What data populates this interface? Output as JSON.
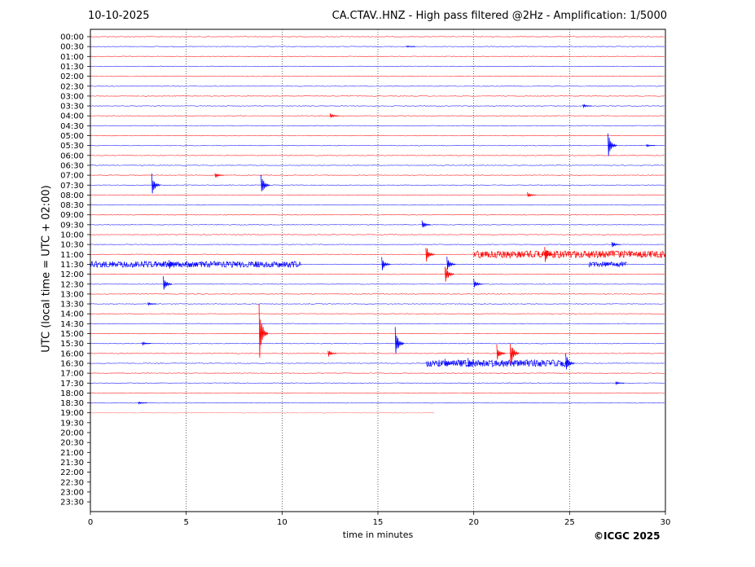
{
  "header": {
    "date": "10-10-2025",
    "station_title": "CA.CTAV..HNZ - High pass filtered @2Hz - Amplification: 1/5000"
  },
  "footer": {
    "copyright": "©ICGC 2025"
  },
  "colors": {
    "red_trace": "#ff0000",
    "blue_trace": "#0000ff",
    "axis": "#000000",
    "grid": "#000000"
  },
  "chart_data": {
    "type": "line",
    "title": "CA.CTAV..HNZ - High pass filtered @2Hz - Amplification: 1/5000",
    "xlabel": "time in minutes",
    "ylabel": "UTC (local time = UTC + 02:00)",
    "xlim": [
      0,
      30
    ],
    "xticks": [
      "0",
      "5",
      "10",
      "15",
      "20",
      "25",
      "30"
    ],
    "grid": "vertical dotted lines at x = 5, 10, 15, 20, 25",
    "rows": [
      "00:00",
      "00:30",
      "01:00",
      "01:30",
      "02:00",
      "02:30",
      "03:00",
      "03:30",
      "04:00",
      "04:30",
      "05:00",
      "05:30",
      "06:00",
      "06:30",
      "07:00",
      "07:30",
      "08:00",
      "08:30",
      "09:00",
      "09:30",
      "10:00",
      "10:30",
      "11:00",
      "11:30",
      "12:00",
      "12:30",
      "13:00",
      "13:30",
      "14:00",
      "14:30",
      "15:00",
      "15:30",
      "16:00",
      "16:30",
      "17:00",
      "17:30",
      "18:00",
      "18:30",
      "19:00",
      "19:30",
      "20:00",
      "20:30",
      "21:00",
      "21:30",
      "22:00",
      "22:30",
      "23:00",
      "23:30"
    ],
    "row_colors": [
      "red",
      "blue",
      "red",
      "blue",
      "red",
      "blue",
      "red",
      "blue",
      "red",
      "blue",
      "red",
      "blue",
      "red",
      "blue",
      "red",
      "blue",
      "red",
      "blue",
      "red",
      "blue",
      "red",
      "blue",
      "red",
      "blue",
      "red",
      "blue",
      "red",
      "blue",
      "red",
      "blue",
      "red",
      "blue",
      "red",
      "blue",
      "red",
      "blue",
      "red",
      "blue",
      "red"
    ],
    "last_trace_end_minute": 18,
    "events": [
      {
        "row": "00:30",
        "minute": 16.5,
        "amplitude": 0.1
      },
      {
        "row": "03:30",
        "minute": 25.7,
        "amplitude": 0.2
      },
      {
        "row": "04:00",
        "minute": 12.5,
        "amplitude": 0.3
      },
      {
        "row": "05:30",
        "minute": 27.0,
        "amplitude": 1.4
      },
      {
        "row": "05:30",
        "minute": 29.0,
        "amplitude": 0.15
      },
      {
        "row": "07:00",
        "minute": 6.5,
        "amplitude": 0.3
      },
      {
        "row": "07:30",
        "minute": 3.2,
        "amplitude": 1.2
      },
      {
        "row": "07:30",
        "minute": 8.9,
        "amplitude": 1.2
      },
      {
        "row": "08:00",
        "minute": 22.8,
        "amplitude": 0.3
      },
      {
        "row": "09:30",
        "minute": 17.3,
        "amplitude": 0.5
      },
      {
        "row": "10:30",
        "minute": 27.2,
        "amplitude": 0.4
      },
      {
        "row": "11:00",
        "minute": 17.5,
        "amplitude": 1.0
      },
      {
        "row": "11:00",
        "minute": 23.7,
        "amplitude": 1.0
      },
      {
        "row": "11:30",
        "minute": 4.1,
        "amplitude": 0.6
      },
      {
        "row": "11:30",
        "minute": 15.2,
        "amplitude": 0.8
      },
      {
        "row": "11:30",
        "minute": 18.6,
        "amplitude": 0.8
      },
      {
        "row": "12:00",
        "minute": 18.5,
        "amplitude": 1.2
      },
      {
        "row": "12:30",
        "minute": 3.8,
        "amplitude": 0.9
      },
      {
        "row": "12:30",
        "minute": 20.0,
        "amplitude": 0.6
      },
      {
        "row": "13:30",
        "minute": 3.0,
        "amplitude": 0.2
      },
      {
        "row": "15:00",
        "minute": 8.8,
        "amplitude": 3.2
      },
      {
        "row": "15:30",
        "minute": 15.9,
        "amplitude": 1.7
      },
      {
        "row": "15:30",
        "minute": 2.7,
        "amplitude": 0.2
      },
      {
        "row": "16:00",
        "minute": 12.4,
        "amplitude": 0.4
      },
      {
        "row": "16:00",
        "minute": 21.2,
        "amplitude": 0.9
      },
      {
        "row": "16:00",
        "minute": 21.9,
        "amplitude": 1.6
      },
      {
        "row": "16:30",
        "minute": 18.5,
        "amplitude": 0.5
      },
      {
        "row": "16:30",
        "minute": 19.7,
        "amplitude": 0.6
      },
      {
        "row": "16:30",
        "minute": 24.8,
        "amplitude": 1.1
      },
      {
        "row": "17:30",
        "minute": 27.4,
        "amplitude": 0.2
      },
      {
        "row": "18:30",
        "minute": 2.5,
        "amplitude": 0.15
      }
    ],
    "bursts": [
      {
        "row": "11:00",
        "from": 20.0,
        "to": 30.0,
        "amplitude": 0.35
      },
      {
        "row": "11:30",
        "from": 0.0,
        "to": 11.0,
        "amplitude": 0.3
      },
      {
        "row": "11:30",
        "from": 26.0,
        "to": 28.0,
        "amplitude": 0.25
      },
      {
        "row": "16:30",
        "from": 17.5,
        "to": 25.0,
        "amplitude": 0.35
      }
    ]
  }
}
